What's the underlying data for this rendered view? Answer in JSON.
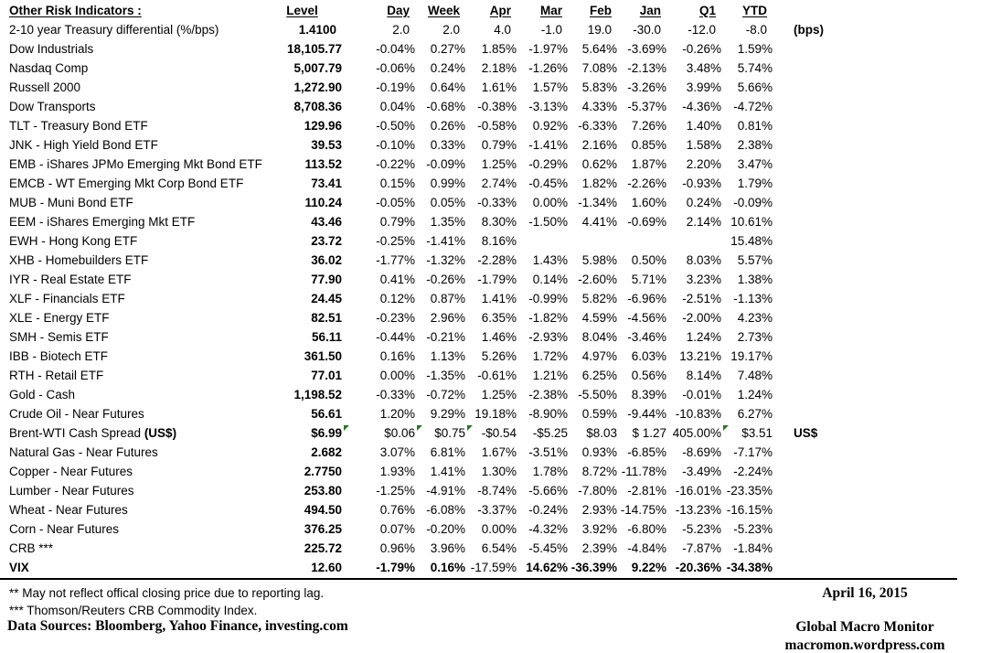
{
  "chart_data": {
    "type": "table",
    "title": "Other Risk Indicators :",
    "columns": [
      "Level",
      "Day",
      "Week",
      "Apr",
      "Mar",
      "Feb",
      "Jan",
      "Q1",
      "YTD"
    ],
    "rows": [
      {
        "label": "2-10 year Treasury differential (%/bps)",
        "values": [
          "1.4100",
          "2.0",
          "2.0",
          "4.0",
          "-1.0",
          "19.0",
          "-30.0",
          "-12.0",
          "-8.0"
        ],
        "note": "(bps)",
        "bps_row": true
      },
      {
        "label": "Dow Industrials",
        "values": [
          "18,105.77",
          "-0.04%",
          "0.27%",
          "1.85%",
          "-1.97%",
          "5.64%",
          "-3.69%",
          "-0.26%",
          "1.59%"
        ]
      },
      {
        "label": "Nasdaq Comp",
        "values": [
          "5,007.79",
          "-0.06%",
          "0.24%",
          "2.18%",
          "-1.26%",
          "7.08%",
          "-2.13%",
          "3.48%",
          "5.74%"
        ]
      },
      {
        "label": "Russell 2000",
        "values": [
          "1,272.90",
          "-0.19%",
          "0.64%",
          "1.61%",
          "1.57%",
          "5.83%",
          "-3.26%",
          "3.99%",
          "5.66%"
        ]
      },
      {
        "label": "Dow Transports",
        "values": [
          "8,708.36",
          "0.04%",
          "-0.68%",
          "-0.38%",
          "-3.13%",
          "4.33%",
          "-5.37%",
          "-4.36%",
          "-4.72%"
        ]
      },
      {
        "label": "TLT - Treasury Bond ETF",
        "values": [
          "129.96",
          "-0.50%",
          "0.26%",
          "-0.58%",
          "0.92%",
          "-6.33%",
          "7.26%",
          "1.40%",
          "0.81%"
        ]
      },
      {
        "label": "JNK - High Yield Bond ETF",
        "values": [
          "39.53",
          "-0.10%",
          "0.33%",
          "0.79%",
          "-1.41%",
          "2.16%",
          "0.85%",
          "1.58%",
          "2.38%"
        ]
      },
      {
        "label": "EMB - iShares JPMo Emerging Mkt Bond ETF",
        "values": [
          "113.52",
          "-0.22%",
          "-0.09%",
          "1.25%",
          "-0.29%",
          "0.62%",
          "1.87%",
          "2.20%",
          "3.47%"
        ]
      },
      {
        "label": "EMCB - WT Emerging Mkt Corp Bond ETF",
        "values": [
          "73.41",
          "0.15%",
          "0.99%",
          "2.74%",
          "-0.45%",
          "1.82%",
          "-2.26%",
          "-0.93%",
          "1.79%"
        ]
      },
      {
        "label": "MUB - Muni Bond ETF",
        "values": [
          "110.24",
          "-0.05%",
          "0.05%",
          "-0.33%",
          "0.00%",
          "-1.34%",
          "1.60%",
          "0.24%",
          "-0.09%"
        ]
      },
      {
        "label": "EEM - iShares Emerging Mkt ETF",
        "values": [
          "43.46",
          "0.79%",
          "1.35%",
          "8.30%",
          "-1.50%",
          "4.41%",
          "-0.69%",
          "2.14%",
          "10.61%"
        ]
      },
      {
        "label": "EWH - Hong Kong ETF",
        "values": [
          "23.72",
          "-0.25%",
          "-1.41%",
          "8.16%",
          "",
          "",
          "",
          "",
          "15.48%"
        ]
      },
      {
        "label": "XHB - Homebuilders ETF",
        "values": [
          "36.02",
          "-1.77%",
          "-1.32%",
          "-2.28%",
          "1.43%",
          "5.98%",
          "0.50%",
          "8.03%",
          "5.57%"
        ]
      },
      {
        "label": "IYR - Real Estate ETF",
        "values": [
          "77.90",
          "0.41%",
          "-0.26%",
          "-1.79%",
          "0.14%",
          "-2.60%",
          "5.71%",
          "3.23%",
          "1.38%"
        ]
      },
      {
        "label": "XLF - Financials ETF",
        "values": [
          "24.45",
          "0.12%",
          "0.87%",
          "1.41%",
          "-0.99%",
          "5.82%",
          "-6.96%",
          "-2.51%",
          "-1.13%"
        ]
      },
      {
        "label": "XLE - Energy ETF",
        "values": [
          "82.51",
          "-0.23%",
          "2.96%",
          "6.35%",
          "-1.82%",
          "4.59%",
          "-4.56%",
          "-2.00%",
          "4.23%"
        ]
      },
      {
        "label": "SMH - Semis ETF",
        "values": [
          "56.11",
          "-0.44%",
          "-0.21%",
          "1.46%",
          "-2.93%",
          "8.04%",
          "-3.46%",
          "1.24%",
          "2.73%"
        ]
      },
      {
        "label": "IBB - Biotech ETF",
        "values": [
          "361.50",
          "0.16%",
          "1.13%",
          "5.26%",
          "1.72%",
          "4.97%",
          "6.03%",
          "13.21%",
          "19.17%"
        ]
      },
      {
        "label": "RTH - Retail ETF",
        "values": [
          "77.01",
          "0.00%",
          "-1.35%",
          "-0.61%",
          "1.21%",
          "6.25%",
          "0.56%",
          "8.14%",
          "7.48%"
        ]
      },
      {
        "label": "Gold - Cash",
        "values": [
          "1,198.52",
          "-0.33%",
          "-0.72%",
          "1.25%",
          "-2.38%",
          "-5.50%",
          "8.39%",
          "-0.01%",
          "1.24%"
        ]
      },
      {
        "label": "Crude Oil - Near Futures",
        "values": [
          "56.61",
          "1.20%",
          "9.29%",
          "19.18%",
          "-8.90%",
          "0.59%",
          "-9.44%",
          "-10.83%",
          "6.27%"
        ]
      },
      {
        "label": "Brent-WTI Cash Spread ",
        "label_bold_part": "(US$)",
        "values": [
          "$6.99",
          "$0.06",
          "$0.75",
          "-$0.54",
          "-$5.25",
          "$8.03",
          "$ 1.27",
          "405.00%",
          "$3.51"
        ],
        "note": "US$",
        "comment_markers": [
          1,
          2,
          3,
          8
        ]
      },
      {
        "label": "Natural Gas - Near Futures",
        "values": [
          "2.682",
          "3.07%",
          "6.81%",
          "1.67%",
          "-3.51%",
          "0.93%",
          "-6.85%",
          "-8.69%",
          "-7.17%"
        ]
      },
      {
        "label": "Copper - Near Futures",
        "values": [
          "2.7750",
          "1.93%",
          "1.41%",
          "1.30%",
          "1.78%",
          "8.72%",
          "-11.78%",
          "-3.49%",
          "-2.24%"
        ]
      },
      {
        "label": "Lumber - Near Futures",
        "values": [
          "253.80",
          "-1.25%",
          "-4.91%",
          "-8.74%",
          "-5.66%",
          "-7.80%",
          "-2.81%",
          "-16.01%",
          "-23.35%"
        ]
      },
      {
        "label": "Wheat - Near Futures",
        "values": [
          "494.50",
          "0.76%",
          "-6.08%",
          "-3.37%",
          "-0.24%",
          "2.93%",
          "-14.75%",
          "-13.23%",
          "-16.15%"
        ]
      },
      {
        "label": "Corn - Near Futures",
        "values": [
          "376.25",
          "0.07%",
          "-0.20%",
          "0.00%",
          "-4.32%",
          "3.92%",
          "-6.80%",
          "-5.23%",
          "-5.23%"
        ]
      },
      {
        "label": "CRB ***",
        "values": [
          "225.72",
          "0.96%",
          "3.96%",
          "6.54%",
          "-5.45%",
          "2.39%",
          "-4.84%",
          "-7.87%",
          "-1.84%"
        ]
      },
      {
        "label": "VIX",
        "values": [
          "12.60",
          "-1.79%",
          "0.16%",
          "-17.59%",
          "14.62%",
          "-36.39%",
          "9.22%",
          "-20.36%",
          "-34.38%"
        ],
        "bold_row": true,
        "normal_cells": [
          3
        ]
      }
    ]
  },
  "footnotes": {
    "line1": "**  May not reflect offical closing price due to reporting lag.",
    "line2": "*** Thomson/Reuters CRB Commodity Index.",
    "sources": "Data Sources:  Bloomberg,  Yahoo Finance, investing.com"
  },
  "footer_right": {
    "date": "April 16, 2015",
    "publisher": "Global Macro Monitor",
    "website": "macromon.wordpress.com"
  },
  "colors": {
    "text": "#000000",
    "rule": "#000000",
    "comment_marker_green": "#1f7a1f"
  }
}
